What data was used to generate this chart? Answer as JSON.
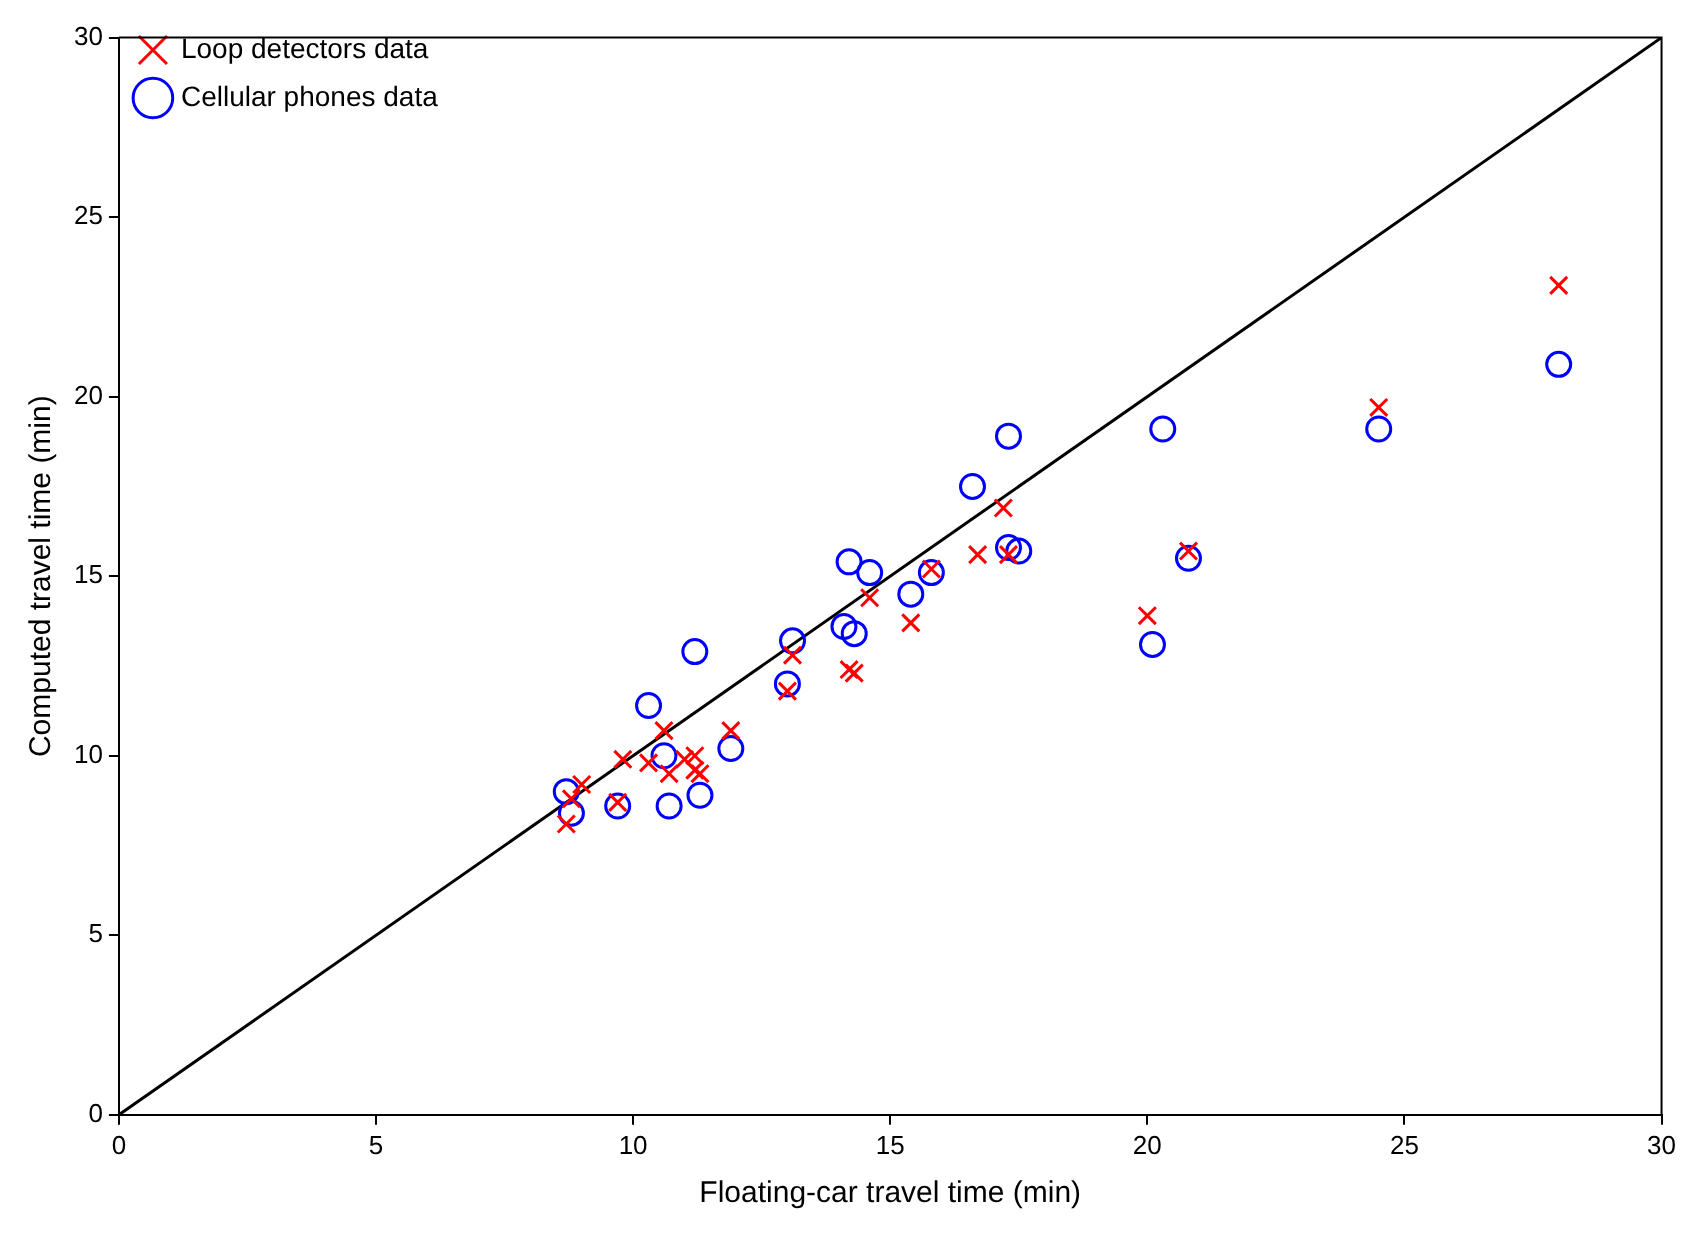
{
  "chart_data": {
    "type": "scatter",
    "xlabel": "Floating-car travel time (min)",
    "ylabel": "Computed travel time (min)",
    "xlim": [
      0,
      30
    ],
    "ylim": [
      0,
      30
    ],
    "xticks": [
      0,
      5,
      10,
      15,
      20,
      25,
      30
    ],
    "yticks": [
      0,
      5,
      10,
      15,
      20,
      25,
      30
    ],
    "grid": false,
    "legend": "top left",
    "series": [
      {
        "name": "Loop detectors data",
        "color": "#ff0000",
        "marker": "cross",
        "x": [
          8.7,
          8.8,
          9.0,
          9.7,
          9.8,
          10.3,
          10.6,
          10.7,
          11.0,
          11.2,
          11.2,
          11.3,
          11.9,
          13.0,
          13.1,
          14.2,
          14.3,
          14.6,
          15.4,
          15.8,
          16.7,
          17.2,
          17.3,
          20.0,
          20.8,
          24.5,
          28.0
        ],
        "values": [
          8.1,
          8.8,
          9.2,
          8.7,
          9.9,
          9.8,
          10.7,
          9.5,
          9.9,
          9.6,
          10.0,
          9.5,
          10.7,
          11.8,
          12.8,
          12.4,
          12.3,
          14.4,
          13.7,
          15.2,
          15.6,
          16.9,
          15.6,
          13.9,
          15.7,
          19.7,
          23.1
        ]
      },
      {
        "name": "Cellular phones data",
        "color": "#0000ff",
        "marker": "circle",
        "x": [
          8.7,
          8.8,
          9.7,
          10.3,
          10.6,
          10.7,
          11.2,
          11.3,
          11.9,
          13.0,
          13.1,
          14.1,
          14.2,
          14.3,
          14.6,
          15.4,
          15.8,
          16.6,
          17.3,
          17.3,
          17.5,
          20.1,
          20.3,
          20.8,
          24.5,
          28.0
        ],
        "values": [
          9.0,
          8.4,
          8.6,
          11.4,
          10.0,
          8.6,
          12.9,
          8.9,
          10.2,
          12.0,
          13.2,
          13.6,
          15.4,
          13.4,
          15.1,
          14.5,
          15.1,
          17.5,
          15.8,
          18.9,
          15.7,
          13.1,
          19.1,
          15.5,
          19.1,
          20.9
        ]
      },
      {
        "type": "line",
        "color": "#000000",
        "marker": "none",
        "line_style": "solid",
        "x": [
          0,
          30
        ],
        "values": [
          0,
          30
        ]
      }
    ]
  }
}
